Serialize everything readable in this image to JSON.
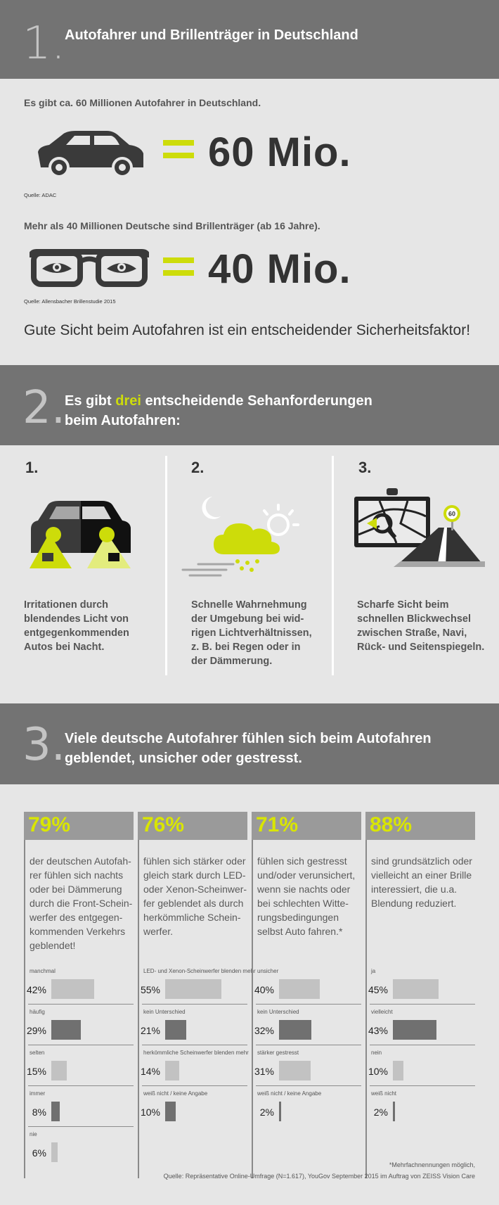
{
  "section1": {
    "number": "1.",
    "title": "Autofahrer und Brillenträger in Deutschland",
    "fact1": "Es gibt ca. 60 Millionen Autofahrer in Deutschland.",
    "value1": "60 Mio.",
    "source1": "Quelle: ADAC",
    "fact2": "Mehr als 40 Millionen Deutsche sind Brillenträger (ab 16 Jahre).",
    "value2": "40 Mio.",
    "source2": "Quelle: Allensbacher Brillenstudie 2015",
    "conclusion": "Gute Sicht beim Autofahren ist ein entscheidender Sicherheitsfaktor!"
  },
  "section2": {
    "number": "2.",
    "title_pre": "Es gibt ",
    "title_highlight": "drei",
    "title_post": " entscheidende Sehanforderungen",
    "title_line2": "beim Autofahren:",
    "items": [
      {
        "num": "1.",
        "icon": "car-headlights-icon",
        "text": [
          "Irritationen durch",
          "blendendes Licht von",
          "entgegenkommenden",
          "Autos bei Nacht."
        ]
      },
      {
        "num": "2.",
        "icon": "weather-cloud-icon",
        "text": [
          "Schnelle Wahrnehmung",
          "der Umgebung bei wid-",
          "rigen Lichtverhältnissen,",
          "z. B. bei Regen oder in",
          "der Dämmerung."
        ]
      },
      {
        "num": "3.",
        "icon": "navigation-road-icon",
        "text": [
          "Scharfe Sicht beim",
          "schnellen Blickwechsel",
          "zwischen Straße, Navi,",
          "Rück- und Seitenspiegeln."
        ]
      }
    ],
    "speed_sign": "60"
  },
  "section3": {
    "number": "3.",
    "title_line1": "Viele deutsche Autofahrer fühlen sich beim Autofahren",
    "title_line2": "geblendet, unsicher oder gestresst.",
    "footnote": "*Mehrfachnennungen möglich,",
    "source": "Quelle: Repräsentative Online-Umfrage (N=1.617), YouGov September 2015 im Auftrag von ZEISS Vision Care"
  },
  "colors": {
    "accent": "#cddc0a",
    "band": "#737373",
    "background": "#e6e6e6",
    "bar_light": "#c2c2c2",
    "bar_dark": "#707070"
  },
  "chart_data": [
    {
      "type": "bar",
      "title": "79%",
      "description": [
        "der deutschen Autofah-",
        "rer fühlen sich nachts",
        "oder bei Dämmerung",
        "durch die Front-Schein-",
        "werfer des entgegen-",
        "kommenden Verkehrs",
        "geblendet!"
      ],
      "categories": [
        "manchmal",
        "häufig",
        "selten",
        "immer",
        "nie"
      ],
      "values": [
        42,
        29,
        15,
        8,
        6
      ],
      "labels": [
        "42%",
        "29%",
        "15%",
        "8%",
        "6%"
      ],
      "shades": [
        "light",
        "dark",
        "light",
        "dark",
        "light"
      ]
    },
    {
      "type": "bar",
      "title": "76%",
      "description": [
        "fühlen sich stärker oder",
        "gleich stark durch LED-",
        "oder Xenon-Scheinwer-",
        "fer geblendet als durch",
        "herkömmliche Schein-",
        "werfer."
      ],
      "categories": [
        "LED- und Xenon-Scheinwerfer blenden mehr",
        "kein Unterschied",
        "herkömmliche Scheinwerfer blenden mehr",
        "weiß nicht / keine Angabe"
      ],
      "values": [
        55,
        21,
        14,
        10
      ],
      "labels": [
        "55%",
        "21%",
        "14%",
        "10%"
      ],
      "shades": [
        "light",
        "dark",
        "light",
        "dark"
      ]
    },
    {
      "type": "bar",
      "title": "71%",
      "description": [
        "fühlen sich gestresst",
        "und/oder verunsichert,",
        "wenn sie nachts oder",
        "bei schlechten Witte-",
        "rungsbedingungen",
        "selbst Auto fahren.*"
      ],
      "categories": [
        "unsicher",
        "kein Unterschied",
        "stärker gestresst",
        "weiß nicht / keine Angabe"
      ],
      "values": [
        40,
        32,
        31,
        2
      ],
      "labels": [
        "40%",
        "32%",
        "31%",
        "2%"
      ],
      "shades": [
        "light",
        "dark",
        "light",
        "dark"
      ]
    },
    {
      "type": "bar",
      "title": "88%",
      "description": [
        "sind grundsätzlich oder",
        "vielleicht an einer Brille",
        "interessiert, die u.a.",
        "Blendung reduziert."
      ],
      "categories": [
        "ja",
        "vielleicht",
        "nein",
        "weiß nicht"
      ],
      "values": [
        45,
        43,
        10,
        2
      ],
      "labels": [
        "45%",
        "43%",
        "10%",
        "2%"
      ],
      "shades": [
        "light",
        "dark",
        "light",
        "dark"
      ]
    }
  ]
}
